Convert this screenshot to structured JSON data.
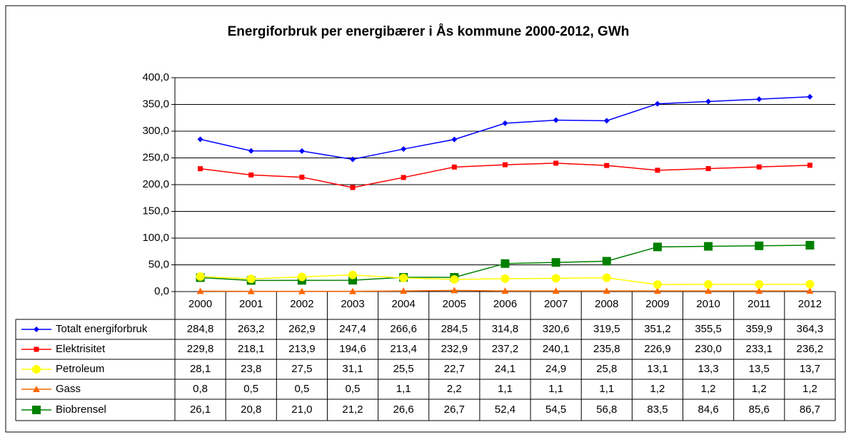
{
  "chart_data": {
    "type": "line",
    "title": "Energiforbruk per energibærer i Ås kommune 2000-2012, GWh",
    "categories": [
      "2000",
      "2001",
      "2002",
      "2003",
      "2004",
      "2005",
      "2006",
      "2007",
      "2008",
      "2009",
      "2010",
      "2011",
      "2012"
    ],
    "ylim": [
      0,
      400
    ],
    "yticks": [
      {
        "value": 0,
        "label": "0,0"
      },
      {
        "value": 50,
        "label": "50,0"
      },
      {
        "value": 100,
        "label": "100,0"
      },
      {
        "value": 150,
        "label": "150,0"
      },
      {
        "value": 200,
        "label": "200,0"
      },
      {
        "value": 250,
        "label": "250,0"
      },
      {
        "value": 300,
        "label": "300,0"
      },
      {
        "value": 350,
        "label": "350,0"
      },
      {
        "value": 400,
        "label": "400,0"
      }
    ],
    "grid": true,
    "series": [
      {
        "name": "Totalt energiforbruk",
        "color": "#0000ff",
        "marker": "diamond",
        "values": [
          284.8,
          263.2,
          262.9,
          247.4,
          266.6,
          284.5,
          314.8,
          320.6,
          319.5,
          351.2,
          355.5,
          359.9,
          364.3
        ],
        "value_labels": [
          "284,8",
          "263,2",
          "262,9",
          "247,4",
          "266,6",
          "284,5",
          "314,8",
          "320,6",
          "319,5",
          "351,2",
          "355,5",
          "359,9",
          "364,3"
        ]
      },
      {
        "name": "Elektrisitet",
        "color": "#ff0000",
        "marker": "square",
        "values": [
          229.8,
          218.1,
          213.9,
          194.6,
          213.4,
          232.9,
          237.2,
          240.1,
          235.8,
          226.9,
          230.0,
          233.1,
          236.2
        ],
        "value_labels": [
          "229,8",
          "218,1",
          "213,9",
          "194,6",
          "213,4",
          "232,9",
          "237,2",
          "240,1",
          "235,8",
          "226,9",
          "230,0",
          "233,1",
          "236,2"
        ]
      },
      {
        "name": "Petroleum",
        "color": "#ffff00",
        "marker": "circle",
        "values": [
          28.1,
          23.8,
          27.5,
          31.1,
          25.5,
          22.7,
          24.1,
          24.9,
          25.8,
          13.1,
          13.3,
          13.5,
          13.7
        ],
        "value_labels": [
          "28,1",
          "23,8",
          "27,5",
          "31,1",
          "25,5",
          "22,7",
          "24,1",
          "24,9",
          "25,8",
          "13,1",
          "13,3",
          "13,5",
          "13,7"
        ]
      },
      {
        "name": "Gass",
        "color": "#ff6600",
        "marker": "triangle",
        "values": [
          0.8,
          0.5,
          0.5,
          0.5,
          1.1,
          2.2,
          1.1,
          1.1,
          1.1,
          1.2,
          1.2,
          1.2,
          1.2
        ],
        "value_labels": [
          "0,8",
          "0,5",
          "0,5",
          "0,5",
          "1,1",
          "2,2",
          "1,1",
          "1,1",
          "1,1",
          "1,2",
          "1,2",
          "1,2",
          "1,2"
        ]
      },
      {
        "name": "Biobrensel",
        "color": "#008000",
        "marker": "bigsquare",
        "values": [
          26.1,
          20.8,
          21.0,
          21.2,
          26.6,
          26.7,
          52.4,
          54.5,
          56.8,
          83.5,
          84.6,
          85.6,
          86.7
        ],
        "value_labels": [
          "26,1",
          "20,8",
          "21,0",
          "21,2",
          "26,6",
          "26,7",
          "52,4",
          "54,5",
          "56,8",
          "83,5",
          "84,6",
          "85,6",
          "86,7"
        ]
      }
    ]
  }
}
